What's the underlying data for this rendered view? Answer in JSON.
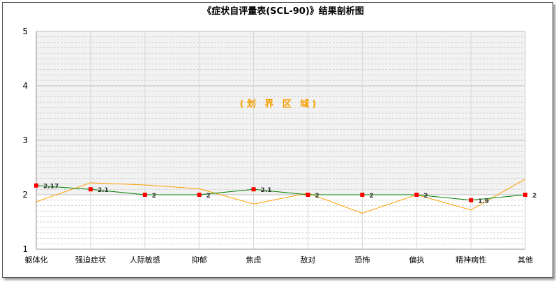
{
  "chart_data": {
    "type": "line",
    "title": "《症状自评量表(SCL-90)》结果剖析图",
    "annotation": "(划 界 区 域)",
    "ylim": [
      1,
      5
    ],
    "yticks": [
      "1",
      "2",
      "3",
      "4",
      "5"
    ],
    "categories": [
      "躯体化",
      "强迫症状",
      "人际敏感",
      "抑郁",
      "焦虑",
      "敌对",
      "恐怖",
      "偏执",
      "精神病性",
      "其他"
    ],
    "grid": true,
    "threshold_band": [
      2,
      5
    ],
    "series": [
      {
        "values": [
          2.17,
          2.1,
          2,
          2,
          2.1,
          2,
          2,
          2,
          1.9,
          2
        ],
        "labels": [
          "2.17",
          "2.1",
          "2",
          "2",
          "2.1",
          "2",
          "2",
          "2",
          "1.9",
          "2"
        ],
        "color": "#008000",
        "marker_color": "#ff0000"
      },
      {
        "values": [
          1.87,
          2.22,
          2.18,
          2.11,
          1.83,
          2.03,
          1.66,
          2.0,
          1.72,
          2.29
        ],
        "color": "#ffa000"
      }
    ],
    "colors": {
      "band": "#f2f2f2",
      "grid": "#cccccc",
      "axis": "#999999"
    }
  }
}
